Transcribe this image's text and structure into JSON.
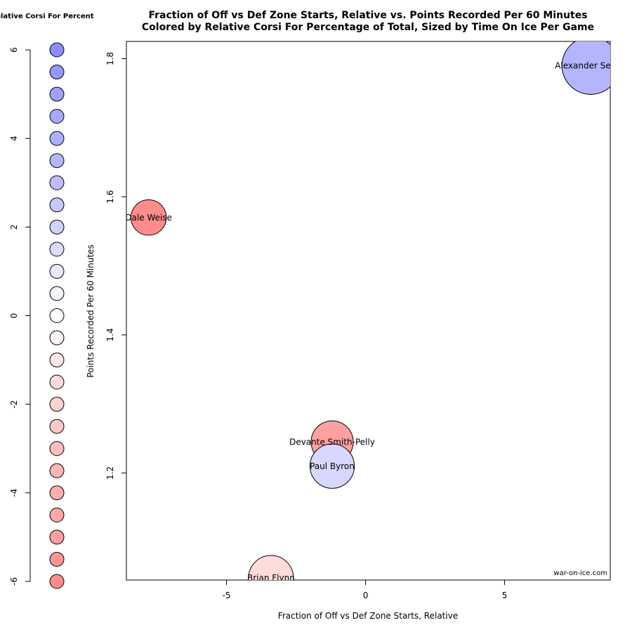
{
  "chart_data": {
    "type": "scatter",
    "title": "Fraction of Off vs Def Zone Starts, Relative vs. Points Recorded Per 60 Minutes",
    "subtitle": "Colored by Relative Corsi For Percentage of Total, Sized by Time On Ice Per Game",
    "xlabel": "Fraction of Off vs Def Zone Starts, Relative",
    "ylabel": "Points Recorded Per 60 Minutes",
    "xlim": [
      -8.6,
      8.8
    ],
    "ylim": [
      1.045,
      1.825
    ],
    "x_ticks": [
      -5,
      0,
      5
    ],
    "x_tick_labels": [
      "-5",
      "0",
      "5"
    ],
    "y_ticks": [
      1.2,
      1.4,
      1.6,
      1.8
    ],
    "y_tick_labels": [
      "1.2",
      "1.4",
      "1.6",
      "1.8"
    ],
    "grid": false,
    "credit": "war-on-ice.com",
    "points": [
      {
        "label": "Alexander Semin",
        "x": 8.1,
        "y": 1.79,
        "color": "#b4b4ff",
        "size": 20.5
      },
      {
        "label": "Dale Weise",
        "x": -7.8,
        "y": 1.57,
        "color": "#ff8c8c",
        "size": 12.6
      },
      {
        "label": "Devante Smith-Pelly",
        "x": -1.2,
        "y": 1.245,
        "color": "#ffa0a0",
        "size": 15.0
      },
      {
        "label": "Paul Byron",
        "x": -1.2,
        "y": 1.21,
        "color": "#d8d8ff",
        "size": 15.8
      },
      {
        "label": "Brian Flynn",
        "x": -3.4,
        "y": 1.048,
        "color": "#ffdcdc",
        "size": 16.0
      }
    ],
    "legend": {
      "title": "Relative Corsi For Percent",
      "ticks": [
        6,
        4,
        2,
        0,
        -2,
        -4,
        -6
      ],
      "tick_labels": [
        "6",
        "4",
        "2",
        "0",
        "-2",
        "-4",
        "-6"
      ],
      "range": [
        -6,
        6
      ],
      "swatches": [
        {
          "value": 6,
          "color": "#8c8cff"
        },
        {
          "value": 5.5,
          "color": "#9696ff"
        },
        {
          "value": 5,
          "color": "#a0a0ff"
        },
        {
          "value": 4.5,
          "color": "#a8a8ff"
        },
        {
          "value": 4,
          "color": "#afafff"
        },
        {
          "value": 3.5,
          "color": "#b6b6ff"
        },
        {
          "value": 3,
          "color": "#bebeff"
        },
        {
          "value": 2.5,
          "color": "#c8c8ff"
        },
        {
          "value": 2,
          "color": "#d2d2ff"
        },
        {
          "value": 1.5,
          "color": "#dcdcff"
        },
        {
          "value": 1,
          "color": "#e8e8ff"
        },
        {
          "value": 0.5,
          "color": "#f4f4ff"
        },
        {
          "value": 0,
          "color": "#ffffff"
        },
        {
          "value": -0.5,
          "color": "#fff4f4"
        },
        {
          "value": -1,
          "color": "#ffe8e8"
        },
        {
          "value": -1.5,
          "color": "#ffdcdc"
        },
        {
          "value": -2,
          "color": "#ffd2d2"
        },
        {
          "value": -2.5,
          "color": "#ffc8c8"
        },
        {
          "value": -3,
          "color": "#ffbebe"
        },
        {
          "value": -3.5,
          "color": "#ffb6b6"
        },
        {
          "value": -4,
          "color": "#ffafaf"
        },
        {
          "value": -4.5,
          "color": "#ffa8a8"
        },
        {
          "value": -5,
          "color": "#ffa0a0"
        },
        {
          "value": -5.5,
          "color": "#ff9696"
        },
        {
          "value": -6,
          "color": "#ff8c8c"
        }
      ]
    }
  }
}
